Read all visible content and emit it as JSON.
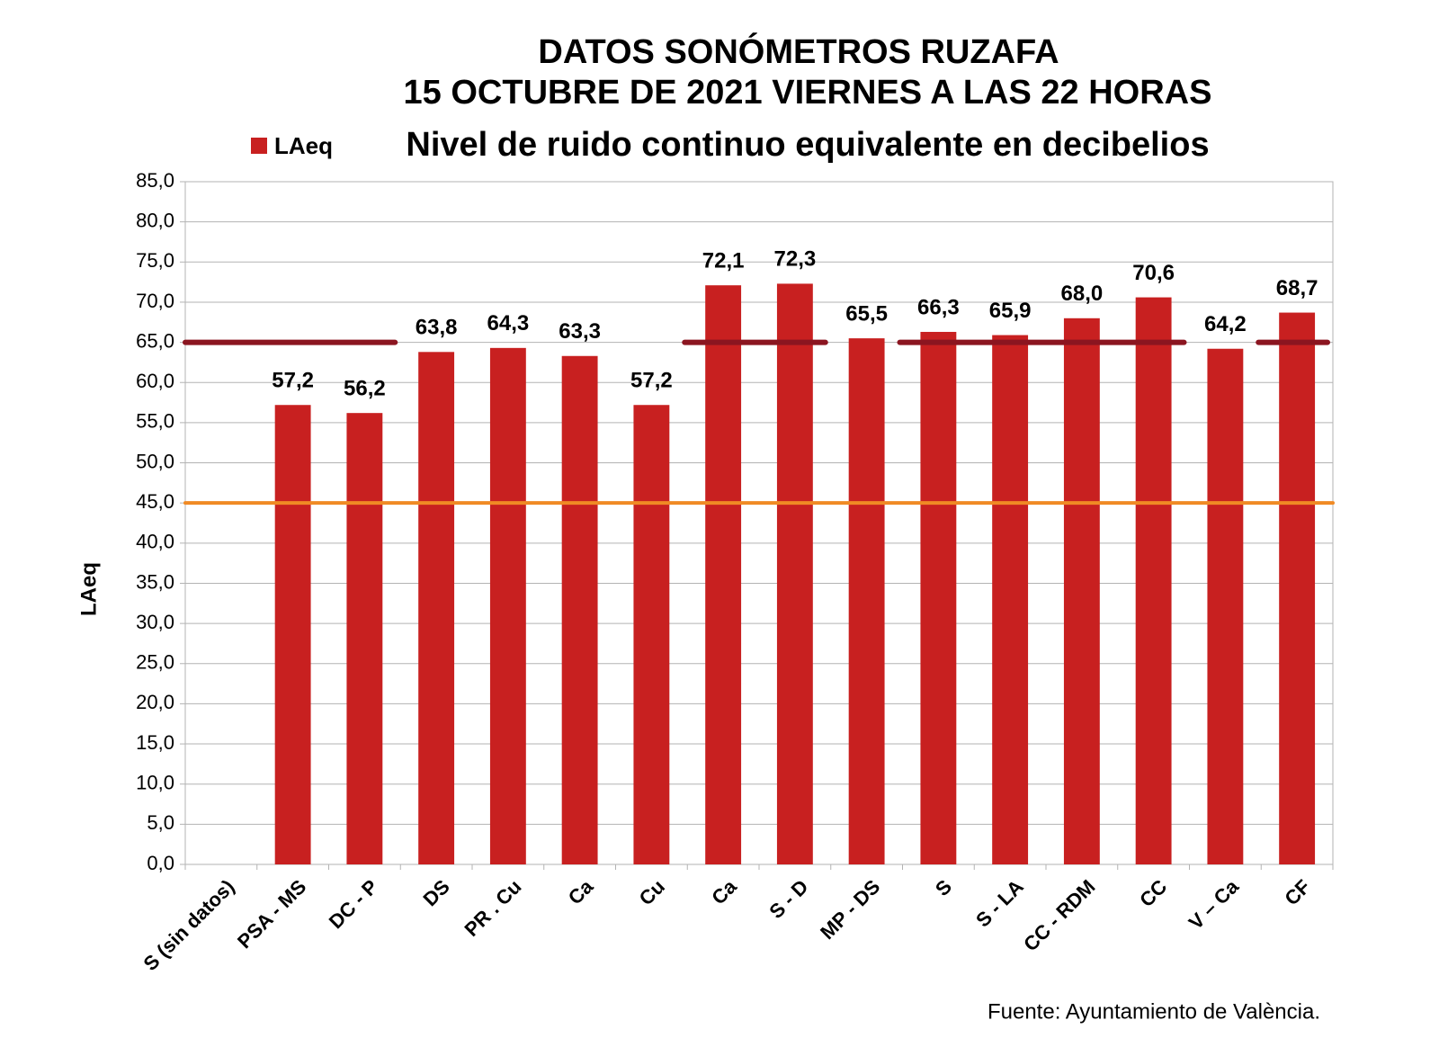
{
  "chart_data": {
    "type": "bar",
    "title": [
      "DATOS SONÓMETROS RUZAFA",
      "15 OCTUBRE DE 2021 VIERNES A LAS 22 HORAS"
    ],
    "subtitle": "Nivel de ruido continuo equivalente en decibelios",
    "y_label": "LAeq",
    "source": "Fuente: Ayuntamiento de València.",
    "categories": [
      "S (sin datos)",
      "PSA - MS",
      "DC - P",
      "DS",
      "PR . Cu",
      "Ca",
      "Cu",
      "Ca",
      "S - D",
      "MP - DS",
      "S",
      "S - LA",
      "CC - RDM",
      "CC",
      "V – Ca",
      "CF"
    ],
    "series": [
      {
        "name": "LAeq",
        "color": "#c82020",
        "values": [
          null,
          57.2,
          56.2,
          63.8,
          64.3,
          63.3,
          57.2,
          72.1,
          72.3,
          65.5,
          66.3,
          65.9,
          68.0,
          70.6,
          64.2,
          68.7
        ],
        "value_labels": [
          null,
          "57,2",
          "56,2",
          "63,8",
          "64,3",
          "63,3",
          "57,2",
          "72,1",
          "72,3",
          "65,5",
          "66,3",
          "65,9",
          "68,0",
          "70,6",
          "64,2",
          "68,7"
        ]
      }
    ],
    "reference_lines": [
      {
        "value": 65,
        "color": "#8b1520"
      },
      {
        "value": 45,
        "color": "#f08a24"
      }
    ],
    "ylim": [
      0,
      85
    ],
    "yticks": [
      {
        "value": 0,
        "label": "0,0"
      },
      {
        "value": 5,
        "label": "5,0"
      },
      {
        "value": 10,
        "label": "10,0"
      },
      {
        "value": 15,
        "label": "15,0"
      },
      {
        "value": 20,
        "label": "20,0"
      },
      {
        "value": 25,
        "label": "25,0"
      },
      {
        "value": 30,
        "label": "30,0"
      },
      {
        "value": 35,
        "label": "35,0"
      },
      {
        "value": 40,
        "label": "40,0"
      },
      {
        "value": 45,
        "label": "45,0"
      },
      {
        "value": 50,
        "label": "50,0"
      },
      {
        "value": 55,
        "label": "55,0"
      },
      {
        "value": 60,
        "label": "60,0"
      },
      {
        "value": 65,
        "label": "65,0"
      },
      {
        "value": 70,
        "label": "70,0"
      },
      {
        "value": 75,
        "label": "75,0"
      },
      {
        "value": 80,
        "label": "80,0"
      },
      {
        "value": 85,
        "label": "85,0"
      }
    ],
    "grid": true,
    "legend": "top-left"
  }
}
